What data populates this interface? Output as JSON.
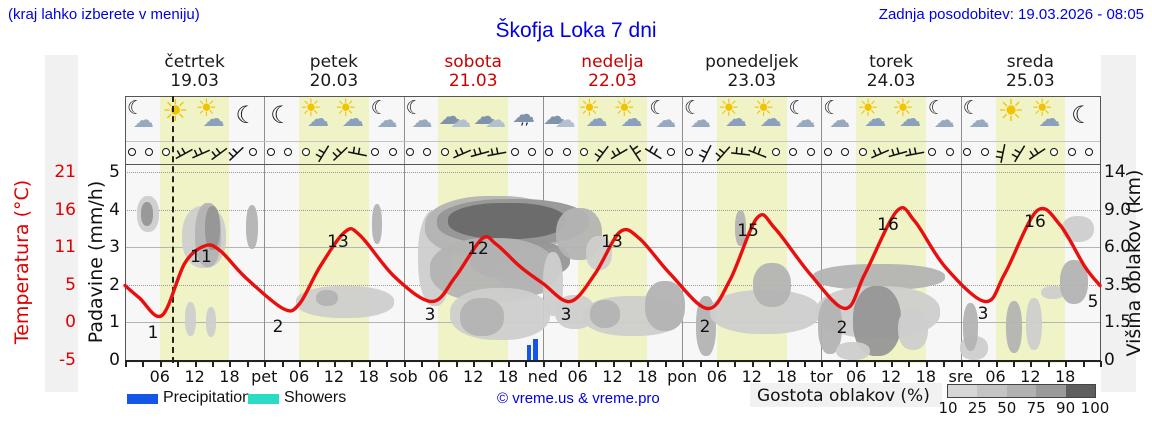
{
  "header": {
    "hint": "(kraj lahko izberete v meniju)",
    "updated": "Zadnja posodobitev: 19.03.2026 - 08:05",
    "title": "Škofja Loka 7 dni"
  },
  "days": [
    {
      "name": "četrtek",
      "date": "19.03",
      "highlight": false
    },
    {
      "name": "petek",
      "date": "20.03",
      "highlight": false
    },
    {
      "name": "sobota",
      "date": "21.03",
      "highlight": true
    },
    {
      "name": "nedelja",
      "date": "22.03",
      "highlight": true
    },
    {
      "name": "ponedeljek",
      "date": "23.03",
      "highlight": false
    },
    {
      "name": "torek",
      "date": "24.03",
      "highlight": false
    },
    {
      "name": "sreda",
      "date": "25.03",
      "highlight": false
    }
  ],
  "icons": [
    "moon-cloud",
    "sun",
    "sun-cloud",
    "moon",
    "moon",
    "sun-cloud",
    "sun-cloud",
    "moon-cloud",
    "moon-cloud",
    "cloud",
    "cloud",
    "cloud-drizzle",
    "cloud",
    "sun-cloud",
    "sun-cloud",
    "moon-cloud",
    "moon-cloud",
    "sun-cloud",
    "sun-cloud",
    "moon-cloud",
    "moon-cloud",
    "sun-cloud",
    "sun-cloud",
    "moon-cloud",
    "moon-cloud",
    "sun",
    "sun-cloud",
    "moon"
  ],
  "wind": [
    null,
    null,
    null,
    -10,
    -5,
    -18,
    -25,
    null,
    null,
    null,
    null,
    -40,
    -25,
    30,
    null,
    null,
    null,
    null,
    null,
    -5,
    3,
    8,
    null,
    null,
    null,
    null,
    null,
    -35,
    -12,
    75,
    50,
    null,
    null,
    -45,
    -30,
    25,
    40,
    null,
    null,
    null,
    null,
    null,
    null,
    -5,
    3,
    8,
    null,
    null,
    null,
    null,
    -60,
    -40,
    -15,
    null,
    null,
    null
  ],
  "axes": {
    "temp": {
      "title": "Temperatura (°C)",
      "color": "#dd0000",
      "ticks": [
        "21",
        "16",
        "11",
        "5",
        "0",
        "-5"
      ]
    },
    "precip": {
      "title": "Padavine (mm/h)",
      "color": "#111111",
      "ticks": [
        "5",
        "4",
        "3",
        "2",
        "1",
        "0"
      ]
    },
    "cloudheight": {
      "title": "Višina oblakov (km)",
      "color": "#111111",
      "ticks": [
        "14",
        "9.0",
        "6.0",
        "3.5",
        "1.5",
        "0"
      ]
    },
    "x": {
      "six_hour": [
        "06",
        "12",
        "18"
      ],
      "day_abbrs": [
        "pet",
        "sob",
        "ned",
        "pon",
        "tor",
        "sre"
      ]
    }
  },
  "legend": {
    "precipitation": {
      "label": "Precipitation",
      "color": "#1456e8"
    },
    "showers": {
      "label": "Showers",
      "color": "#2bdcc5"
    },
    "copyright": "© vreme.us & vreme.pro",
    "cloud_density": {
      "label": "Gostota oblakov (%)",
      "ticks": [
        "10",
        "25",
        "50",
        "75",
        "90",
        "100"
      ],
      "colors": [
        "#d6d6d6",
        "#c4c4c4",
        "#b1b1b1",
        "#9a9a9a",
        "#5e5e5e"
      ]
    }
  },
  "chart_data": {
    "type": "meteogram",
    "title": "Škofja Loka 7 dni",
    "x_unit": "hours from 19.03 00:00",
    "x_range": [
      0,
      168
    ],
    "temp_axis_range_c": [
      -5.4,
      21.6
    ],
    "precip_axis_range_mm": [
      0,
      5
    ],
    "daily_max_c": [
      11,
      13,
      12,
      13,
      15,
      16,
      16
    ],
    "daily_min_c": [
      1,
      2,
      3,
      3,
      2,
      2,
      3
    ],
    "end_temp_c": 5,
    "temperature_series": [
      [
        0,
        5.3
      ],
      [
        2.5,
        3.5
      ],
      [
        6.4,
        1
      ],
      [
        10.3,
        8.5
      ],
      [
        13.8,
        11
      ],
      [
        16.4,
        10.3
      ],
      [
        20.7,
        6.5
      ],
      [
        27.2,
        2
      ],
      [
        30,
        2.6
      ],
      [
        33.6,
        8
      ],
      [
        37.9,
        13
      ],
      [
        40.5,
        12.5
      ],
      [
        46.5,
        6.5
      ],
      [
        52.9,
        3
      ],
      [
        56.9,
        6.5
      ],
      [
        61.5,
        12
      ],
      [
        64,
        11.2
      ],
      [
        68.1,
        8
      ],
      [
        72,
        5.6
      ],
      [
        76.7,
        3
      ],
      [
        81,
        7
      ],
      [
        85.3,
        13
      ],
      [
        88.7,
        12
      ],
      [
        93.9,
        7
      ],
      [
        100.3,
        2
      ],
      [
        104.2,
        6
      ],
      [
        108.9,
        15
      ],
      [
        112,
        13.5
      ],
      [
        118,
        7
      ],
      [
        124.1,
        2
      ],
      [
        127.5,
        7
      ],
      [
        133,
        16
      ],
      [
        136.1,
        14.5
      ],
      [
        141.3,
        8
      ],
      [
        148.2,
        3
      ],
      [
        151.6,
        7
      ],
      [
        157.1,
        16
      ],
      [
        161.1,
        14
      ],
      [
        165.4,
        8
      ],
      [
        168,
        5.3
      ]
    ],
    "temperature_labels": [
      {
        "v": "1",
        "x": 153,
        "y": 333
      },
      {
        "v": "11",
        "x": 201,
        "y": 257
      },
      {
        "v": "2",
        "x": 278,
        "y": 327
      },
      {
        "v": "13",
        "x": 338,
        "y": 242
      },
      {
        "v": "3",
        "x": 430,
        "y": 315
      },
      {
        "v": "12",
        "x": 478,
        "y": 249
      },
      {
        "v": "3",
        "x": 566,
        "y": 315
      },
      {
        "v": "13",
        "x": 612,
        "y": 242
      },
      {
        "v": "2",
        "x": 705,
        "y": 327
      },
      {
        "v": "15",
        "x": 748,
        "y": 231
      },
      {
        "v": "2",
        "x": 842,
        "y": 328
      },
      {
        "v": "16",
        "x": 888,
        "y": 225
      },
      {
        "v": "3",
        "x": 983,
        "y": 314
      },
      {
        "v": "16",
        "x": 1035,
        "y": 222
      },
      {
        "v": "5",
        "x": 1093,
        "y": 302
      }
    ],
    "precipitation_bars": [
      {
        "x": 527,
        "w": 4,
        "mm": 0.4
      },
      {
        "x": 533,
        "w": 5,
        "mm": 0.56
      }
    ],
    "now_line_x": 172,
    "cloud_blobs": [
      [
        137,
        196,
        22,
        36,
        1
      ],
      [
        141,
        202,
        12,
        24,
        3
      ],
      [
        182,
        206,
        44,
        62,
        1
      ],
      [
        195,
        203,
        26,
        64,
        2
      ],
      [
        205,
        206,
        15,
        44,
        3
      ],
      [
        185,
        302,
        11,
        34,
        1
      ],
      [
        206,
        307,
        10,
        30,
        1
      ],
      [
        246,
        205,
        12,
        44,
        2
      ],
      [
        296,
        286,
        98,
        32,
        1
      ],
      [
        316,
        290,
        22,
        16,
        2
      ],
      [
        372,
        204,
        10,
        40,
        2
      ],
      [
        418,
        210,
        34,
        96,
        1
      ],
      [
        425,
        196,
        140,
        62,
        2
      ],
      [
        437,
        199,
        152,
        46,
        3
      ],
      [
        448,
        203,
        118,
        36,
        4
      ],
      [
        470,
        240,
        100,
        40,
        3
      ],
      [
        430,
        238,
        126,
        64,
        2
      ],
      [
        498,
        250,
        60,
        45,
        2
      ],
      [
        556,
        208,
        46,
        52,
        2
      ],
      [
        586,
        236,
        26,
        34,
        1
      ],
      [
        450,
        288,
        100,
        52,
        1
      ],
      [
        460,
        298,
        44,
        38,
        2
      ],
      [
        543,
        252,
        20,
        64,
        1
      ],
      [
        555,
        295,
        40,
        34,
        1
      ],
      [
        583,
        296,
        100,
        40,
        1
      ],
      [
        590,
        300,
        30,
        28,
        2
      ],
      [
        645,
        281,
        40,
        50,
        2
      ],
      [
        696,
        296,
        20,
        60,
        2
      ],
      [
        710,
        290,
        110,
        44,
        1
      ],
      [
        753,
        263,
        38,
        44,
        2
      ],
      [
        735,
        210,
        11,
        36,
        2
      ],
      [
        813,
        264,
        132,
        26,
        2
      ],
      [
        816,
        286,
        124,
        52,
        1
      ],
      [
        818,
        298,
        24,
        56,
        2
      ],
      [
        853,
        286,
        48,
        70,
        3
      ],
      [
        898,
        308,
        30,
        42,
        1
      ],
      [
        836,
        342,
        34,
        18,
        1
      ],
      [
        960,
        336,
        28,
        24,
        1
      ],
      [
        963,
        303,
        15,
        48,
        2
      ],
      [
        1006,
        301,
        16,
        52,
        2
      ],
      [
        1026,
        298,
        16,
        52,
        1
      ],
      [
        1041,
        286,
        24,
        13,
        1
      ],
      [
        1060,
        260,
        28,
        44,
        2
      ],
      [
        1062,
        216,
        32,
        26,
        1
      ]
    ],
    "cloud_gray_levels": {
      "1": "#cecece",
      "2": "#b3b3b3",
      "3": "#969696",
      "4": "#696969"
    }
  }
}
